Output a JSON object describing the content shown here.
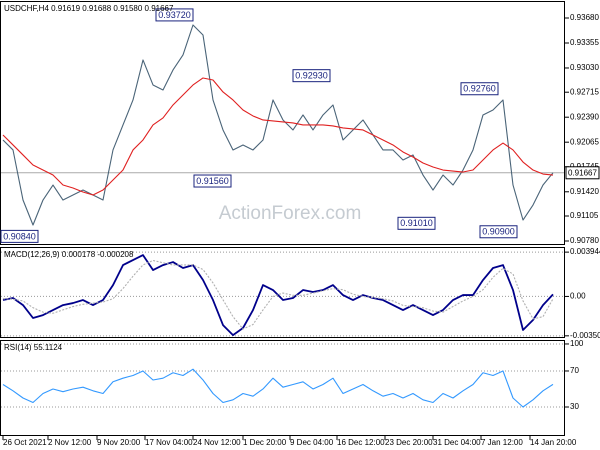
{
  "chart_data": [
    {
      "type": "line",
      "title": "USDCHF,H4 0.91619 0.91688 0.91580 0.91667",
      "watermark": "ActionForex.com",
      "xlim": [
        0,
        55
      ],
      "ylim": [
        0.90728,
        0.93901
      ],
      "yticks": [
        {
          "value": 0.9368,
          "label": "0.93680"
        },
        0.93355,
        {
          "value": 0.9303,
          "label": "0.93030"
        },
        0.92715,
        {
          "value": 0.9239,
          "label": "0.92390"
        },
        0.92065,
        0.91745,
        {
          "value": 0.9142,
          "label": "0.91420"
        },
        0.91105,
        {
          "value": 0.9078,
          "label": "0.90780"
        }
      ],
      "grid": false,
      "last_price": 0.91667,
      "series": [
        {
          "color": "#4a6478",
          "values": [
            0.92094,
            0.91964,
            0.91313,
            0.90988,
            0.91313,
            0.91508,
            0.91313,
            0.91378,
            0.91443,
            0.91378,
            0.91313,
            0.91964,
            0.92289,
            0.92614,
            0.93134,
            0.92809,
            0.92744,
            0.93004,
            0.93199,
            0.93589,
            0.93459,
            0.92614,
            0.92224,
            0.91964,
            0.92029,
            0.91964,
            0.92094,
            0.92614,
            0.92354,
            0.92224,
            0.92419,
            0.92224,
            0.92419,
            0.92549,
            0.92094,
            0.92224,
            0.92354,
            0.92159,
            0.91964,
            0.91964,
            0.91833,
            0.91899,
            0.91638,
            0.91443,
            0.91638,
            0.91508,
            0.91703,
            0.91964,
            0.92419,
            0.92484,
            0.92614,
            0.91508,
            0.91053,
            0.91248,
            0.91508,
            0.91667
          ]
        },
        {
          "color": "#e02020",
          "values": [
            0.92159,
            0.92029,
            0.91899,
            0.91768,
            0.91703,
            0.91638,
            0.91508,
            0.91469,
            0.91417,
            0.91378,
            0.91443,
            0.91573,
            0.91703,
            0.91964,
            0.92094,
            0.92289,
            0.9238,
            0.92549,
            0.92679,
            0.92809,
            0.929,
            0.92874,
            0.92718,
            0.92614,
            0.92484,
            0.92406,
            0.92354,
            0.92341,
            0.92328,
            0.92315,
            0.92289,
            0.92289,
            0.92289,
            0.92276,
            0.9225,
            0.92237,
            0.92224,
            0.92159,
            0.92094,
            0.92029,
            0.91938,
            0.91872,
            0.91794,
            0.91742,
            0.91703,
            0.9169,
            0.91677,
            0.91703,
            0.91833,
            0.91964,
            0.92054,
            0.91964,
            0.91807,
            0.91703,
            0.91651,
            0.91638
          ]
        }
      ],
      "annotations": [
        {
          "x": 3.5,
          "value": 0.9084,
          "label": "0.90840"
        },
        {
          "x": 19,
          "value": 0.9372,
          "label": "0.93720"
        },
        {
          "x": 22.8,
          "value": 0.9156,
          "label": "0.91560"
        },
        {
          "x": 32.7,
          "value": 0.9293,
          "label": "0.92930"
        },
        {
          "x": 43.2,
          "value": 0.9101,
          "label": "0.91010"
        },
        {
          "x": 49.5,
          "value": 0.9276,
          "label": "0.92760"
        },
        {
          "x": 51.4,
          "value": 0.909,
          "label": "0.90900"
        }
      ]
    },
    {
      "type": "line",
      "title": "MACD(12,26,9) 0.000178 -0.000208",
      "xlim": [
        0,
        55
      ],
      "ylim": [
        -0.0037,
        0.0044
      ],
      "yticks": [
        {
          "value": 0.003944,
          "label": "0.003944"
        },
        {
          "value": 0,
          "label": "0.00"
        },
        {
          "value": -0.003506,
          "label": "-0.003506"
        }
      ],
      "grid": true,
      "series": [
        {
          "color": "#00008b",
          "values": [
            -0.00032,
            -0.00014,
            -0.00077,
            -0.00192,
            -0.00166,
            -0.00121,
            -0.00077,
            -0.00059,
            -0.00032,
            -0.00077,
            -0.00032,
            0.00101,
            0.00279,
            0.00324,
            0.00368,
            0.00235,
            0.00279,
            0.00306,
            0.00253,
            0.00279,
            0.00146,
            -0.00032,
            -0.00255,
            -0.00344,
            -0.00281,
            -0.00121,
            0.00101,
            0.00057,
            -0.00032,
            -0.00014,
            0.00057,
            0.00039,
            0.00057,
            0.00101,
            0.00012,
            -0.00032,
            0.00012,
            -0.00014,
            -0.00032,
            -0.00077,
            -0.00121,
            -0.00077,
            -0.00121,
            -0.00166,
            -0.00121,
            -0.00032,
            0.00012,
            0.00012,
            0.00146,
            0.00253,
            0.00279,
            0.00057,
            -0.00299,
            -0.0021,
            -0.00077,
            0.00018
          ]
        },
        {
          "color": "#b0b0b0",
          "style": "dotted",
          "values": [
            -0.0002,
            -0.00025,
            -0.0004,
            -0.001,
            -0.0014,
            -0.0015,
            -0.0012,
            -0.0009,
            -0.0007,
            -0.0006,
            -0.0005,
            -0.0002,
            0.0007,
            0.0018,
            0.0028,
            0.0032,
            0.003,
            0.0028,
            0.0028,
            0.0028,
            0.0024,
            0.0012,
            -0.0003,
            -0.0018,
            -0.0029,
            -0.0025,
            -0.0012,
            0,
            0.0003,
            0.0001,
            0.0001,
            0.0003,
            0.0005,
            0.0007,
            0.0006,
            0.0002,
            0,
            -0.0001,
            -0.0002,
            -0.0004,
            -0.0008,
            -0.0009,
            -0.001,
            -0.0013,
            -0.0014,
            -0.0009,
            -0.0004,
            0,
            0.0006,
            0.0017,
            0.0025,
            0.002,
            -0.0004,
            -0.002,
            -0.0018,
            -0.00021
          ]
        }
      ]
    },
    {
      "type": "line",
      "title": "RSI(14) 55.1124",
      "xlim": [
        0,
        55
      ],
      "ylim": [
        -2.2,
        104.4
      ],
      "yticks": [
        100,
        70,
        30
      ],
      "grid": true,
      "xticks": [
        {
          "value": 0,
          "label": "26 Oct 2021"
        },
        {
          "value": 4.5,
          "label": "2 Nov 12:00"
        },
        {
          "value": 9.4,
          "label": "9 Nov 20:00"
        },
        {
          "value": 14.2,
          "label": "17 Nov 04:00"
        },
        {
          "value": 19,
          "label": "24 Nov 12:00"
        },
        {
          "value": 24,
          "label": "1 Dec 20:00"
        },
        {
          "value": 28.7,
          "label": "9 Dec 04:00"
        },
        {
          "value": 33.4,
          "label": "16 Dec 12:00"
        },
        {
          "value": 38.2,
          "label": "23 Dec 20:00"
        },
        {
          "value": 43,
          "label": "31 Dec 04:00"
        },
        {
          "value": 47.8,
          "label": "7 Jan 12:00"
        },
        {
          "value": 52.7,
          "label": "14 Jan 20:00"
        }
      ],
      "series": [
        {
          "color": "#3399ff",
          "values": [
            55,
            48,
            40,
            35,
            45,
            50,
            47,
            50,
            52,
            48,
            45,
            58,
            62,
            65,
            70,
            60,
            62,
            68,
            65,
            72,
            60,
            45,
            35,
            38,
            45,
            42,
            50,
            62,
            52,
            55,
            58,
            50,
            55,
            62,
            45,
            50,
            55,
            48,
            42,
            45,
            40,
            45,
            38,
            35,
            45,
            40,
            48,
            55,
            68,
            65,
            70,
            40,
            30,
            38,
            48,
            55.1124
          ]
        }
      ]
    }
  ]
}
